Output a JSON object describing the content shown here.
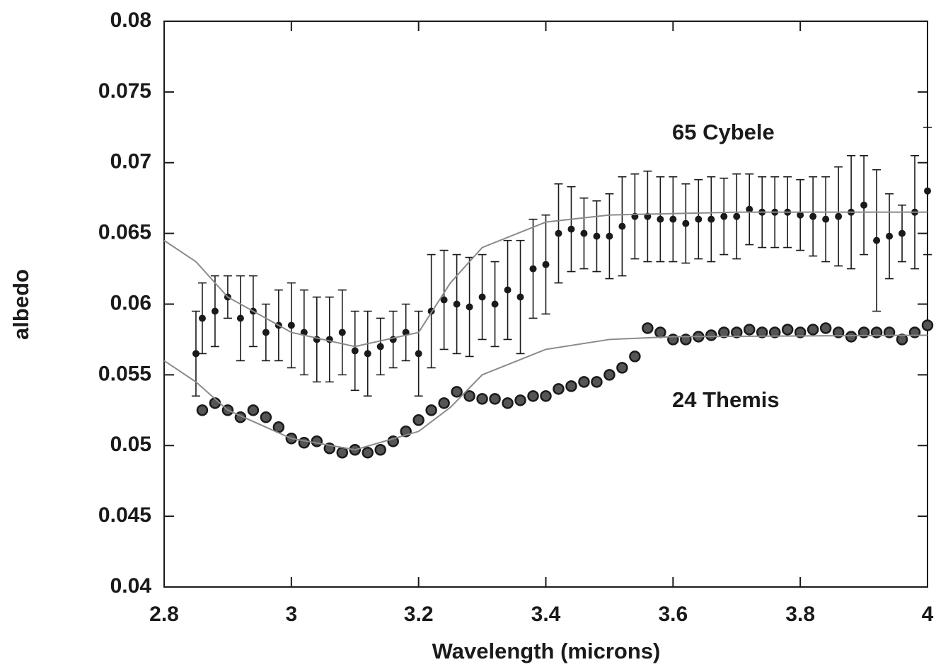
{
  "chart_data": {
    "type": "scatter",
    "xlabel": "Wavelength (microns)",
    "ylabel": "albedo",
    "xlim": [
      2.8,
      4
    ],
    "ylim": [
      0.04,
      0.08
    ],
    "xticks": [
      2.8,
      3,
      3.2,
      3.4,
      3.6,
      3.8,
      4
    ],
    "yticks": [
      0.04,
      0.045,
      0.05,
      0.055,
      0.06,
      0.065,
      0.07,
      0.075,
      0.08
    ],
    "annotations": [
      "65 Cybele",
      "24 Themis"
    ],
    "series": [
      {
        "type": "scatter",
        "color": "#1a1a1a",
        "x": [
          2.85,
          2.86,
          2.88,
          2.9,
          2.92,
          2.94,
          2.96,
          2.98,
          3.0,
          3.02,
          3.04,
          3.06,
          3.08,
          3.1,
          3.12,
          3.14,
          3.16,
          3.18,
          3.2,
          3.22,
          3.24,
          3.26,
          3.28,
          3.3,
          3.32,
          3.34,
          3.36,
          3.38,
          3.4,
          3.42,
          3.44,
          3.46,
          3.48,
          3.5,
          3.52,
          3.54,
          3.56,
          3.58,
          3.6,
          3.62,
          3.64,
          3.66,
          3.68,
          3.7,
          3.72,
          3.74,
          3.76,
          3.78,
          3.8,
          3.82,
          3.84,
          3.86,
          3.88,
          3.9,
          3.92,
          3.94,
          3.96,
          3.98,
          4.0
        ],
        "values": [
          0.0565,
          0.059,
          0.0595,
          0.0605,
          0.059,
          0.0595,
          0.058,
          0.0585,
          0.0585,
          0.058,
          0.0575,
          0.0575,
          0.058,
          0.0567,
          0.0565,
          0.057,
          0.0575,
          0.058,
          0.0565,
          0.0595,
          0.0603,
          0.06,
          0.0598,
          0.0605,
          0.06,
          0.061,
          0.0605,
          0.0625,
          0.0628,
          0.065,
          0.0653,
          0.065,
          0.0648,
          0.0648,
          0.0655,
          0.0662,
          0.0662,
          0.066,
          0.066,
          0.0657,
          0.066,
          0.066,
          0.0662,
          0.0662,
          0.0667,
          0.0665,
          0.0665,
          0.0665,
          0.0663,
          0.0662,
          0.066,
          0.0662,
          0.0665,
          0.067,
          0.0645,
          0.0648,
          0.065,
          0.0665,
          0.068
        ],
        "errors": [
          0.003,
          0.0025,
          0.0025,
          0.0015,
          0.003,
          0.0025,
          0.002,
          0.0025,
          0.003,
          0.003,
          0.003,
          0.003,
          0.003,
          0.0028,
          0.003,
          0.002,
          0.002,
          0.002,
          0.003,
          0.004,
          0.0035,
          0.0035,
          0.0035,
          0.003,
          0.003,
          0.0035,
          0.004,
          0.0035,
          0.0035,
          0.0035,
          0.003,
          0.0025,
          0.0025,
          0.003,
          0.0035,
          0.003,
          0.0032,
          0.003,
          0.003,
          0.0028,
          0.0028,
          0.003,
          0.0027,
          0.003,
          0.0025,
          0.0025,
          0.0025,
          0.0025,
          0.0025,
          0.0028,
          0.003,
          0.0035,
          0.004,
          0.0035,
          0.005,
          0.003,
          0.002,
          0.004,
          0.0045
        ]
      },
      {
        "type": "scatter",
        "color": "#1a1a1a",
        "x": [
          2.86,
          2.88,
          2.9,
          2.92,
          2.94,
          2.96,
          2.98,
          3.0,
          3.02,
          3.04,
          3.06,
          3.08,
          3.1,
          3.12,
          3.14,
          3.16,
          3.18,
          3.2,
          3.22,
          3.24,
          3.26,
          3.28,
          3.3,
          3.32,
          3.34,
          3.36,
          3.38,
          3.4,
          3.42,
          3.44,
          3.46,
          3.48,
          3.5,
          3.52,
          3.54,
          3.56,
          3.58,
          3.6,
          3.62,
          3.64,
          3.66,
          3.68,
          3.7,
          3.72,
          3.74,
          3.76,
          3.78,
          3.8,
          3.82,
          3.84,
          3.86,
          3.88,
          3.9,
          3.92,
          3.94,
          3.96,
          3.98,
          4.0
        ],
        "values": [
          0.0525,
          0.053,
          0.0525,
          0.052,
          0.0525,
          0.052,
          0.0513,
          0.0505,
          0.0502,
          0.0503,
          0.0498,
          0.0495,
          0.0497,
          0.0495,
          0.0497,
          0.0503,
          0.051,
          0.0518,
          0.0525,
          0.053,
          0.0538,
          0.0535,
          0.0533,
          0.0533,
          0.053,
          0.0532,
          0.0535,
          0.0535,
          0.054,
          0.0542,
          0.0545,
          0.0545,
          0.055,
          0.0555,
          0.0563,
          0.0583,
          0.058,
          0.0575,
          0.0575,
          0.0577,
          0.0578,
          0.058,
          0.058,
          0.0582,
          0.058,
          0.058,
          0.0582,
          0.058,
          0.0582,
          0.0583,
          0.058,
          0.0577,
          0.058,
          0.058,
          0.058,
          0.0575,
          0.058,
          0.0585
        ]
      },
      {
        "type": "line",
        "color": "#8a8a8a",
        "x": [
          2.8,
          2.85,
          2.9,
          3.0,
          3.1,
          3.2,
          3.25,
          3.3,
          3.4,
          3.5,
          3.7,
          4.0
        ],
        "values": [
          0.0645,
          0.063,
          0.0605,
          0.058,
          0.057,
          0.058,
          0.0615,
          0.064,
          0.0658,
          0.0663,
          0.0665,
          0.0665
        ]
      },
      {
        "type": "line",
        "color": "#8a8a8a",
        "x": [
          2.8,
          2.85,
          2.9,
          3.0,
          3.1,
          3.2,
          3.25,
          3.3,
          3.4,
          3.5,
          3.6,
          4.0
        ],
        "values": [
          0.056,
          0.0545,
          0.0525,
          0.0505,
          0.0497,
          0.051,
          0.0527,
          0.055,
          0.0568,
          0.0575,
          0.0577,
          0.0578
        ]
      }
    ]
  }
}
